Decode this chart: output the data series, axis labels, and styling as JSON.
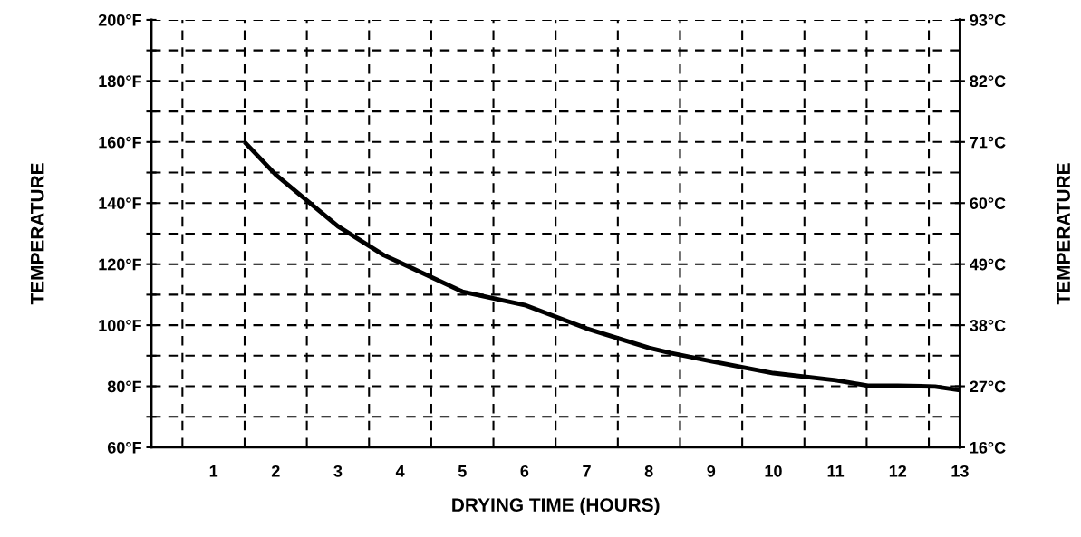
{
  "chart_data": {
    "type": "line",
    "xlabel": "DRYING TIME (HOURS)",
    "ylabel": "TEMPERATURE",
    "y2label": "TEMPERATURE",
    "x": [
      1.5,
      2.0,
      3.0,
      3.74,
      4.0,
      5.0,
      6.0,
      7.0,
      8.0,
      8.35,
      9.0,
      10.0,
      11.0,
      11.52,
      12.0,
      12.6,
      13.0
    ],
    "series": [
      {
        "color": "#000000",
        "values": [
          160,
          149.3,
          132.4,
          122.9,
          120.5,
          111,
          106.6,
          98.9,
          92.6,
          90.9,
          88.2,
          84.3,
          82,
          80.2,
          80.2,
          79.9,
          78.7
        ]
      }
    ],
    "xlim": [
      0,
      13
    ],
    "xticks": [
      1,
      2,
      3,
      4,
      5,
      6,
      7,
      8,
      9,
      10,
      11,
      12,
      13,
      {
        "value": 0,
        "label": null
      },
      {
        "value": 0.5,
        "label": null
      },
      {
        "value": 1.5,
        "label": null
      },
      {
        "value": 2.5,
        "label": null
      },
      {
        "value": 3.5,
        "label": null
      },
      {
        "value": 4.5,
        "label": null
      },
      {
        "value": 5.5,
        "label": null
      },
      {
        "value": 6.5,
        "label": null
      },
      {
        "value": 7.5,
        "label": null
      },
      {
        "value": 8.5,
        "label": null
      },
      {
        "value": 9.5,
        "label": null
      },
      {
        "value": 10.5,
        "label": null
      },
      {
        "value": 11.5,
        "label": null
      },
      {
        "value": 12.5,
        "label": null
      }
    ],
    "ylim": [
      60,
      200
    ],
    "yticks": [
      {
        "value": 60,
        "label": "60°F"
      },
      {
        "value": 70,
        "label": null
      },
      {
        "value": 80,
        "label": "80°F"
      },
      {
        "value": 90,
        "label": null
      },
      {
        "value": 100,
        "label": "100°F"
      },
      {
        "value": 110,
        "label": null
      },
      {
        "value": 120,
        "label": "120°F"
      },
      {
        "value": 130,
        "label": null
      },
      {
        "value": 140,
        "label": "140°F"
      },
      {
        "value": 150,
        "label": null
      },
      {
        "value": 160,
        "label": "160°F"
      },
      {
        "value": 170,
        "label": null
      },
      {
        "value": 180,
        "label": "180°F"
      },
      {
        "value": 190,
        "label": null
      },
      {
        "value": 200,
        "label": "200°F"
      }
    ],
    "y2lim": [
      15.56,
      93.33
    ],
    "y2ticks": [
      {
        "value": 15.56,
        "label": "16°C"
      },
      {
        "value": 26.67,
        "label": "27°C"
      },
      {
        "value": 37.78,
        "label": "38°C"
      },
      {
        "value": 48.89,
        "label": "49°C"
      },
      {
        "value": 60,
        "label": "60°C"
      },
      {
        "value": 71.11,
        "label": "71°C"
      },
      {
        "value": 82.22,
        "label": "82°C"
      },
      {
        "value": 93.33,
        "label": "93°C"
      }
    ],
    "grid": true,
    "line_style": "solid",
    "marker": "none"
  }
}
